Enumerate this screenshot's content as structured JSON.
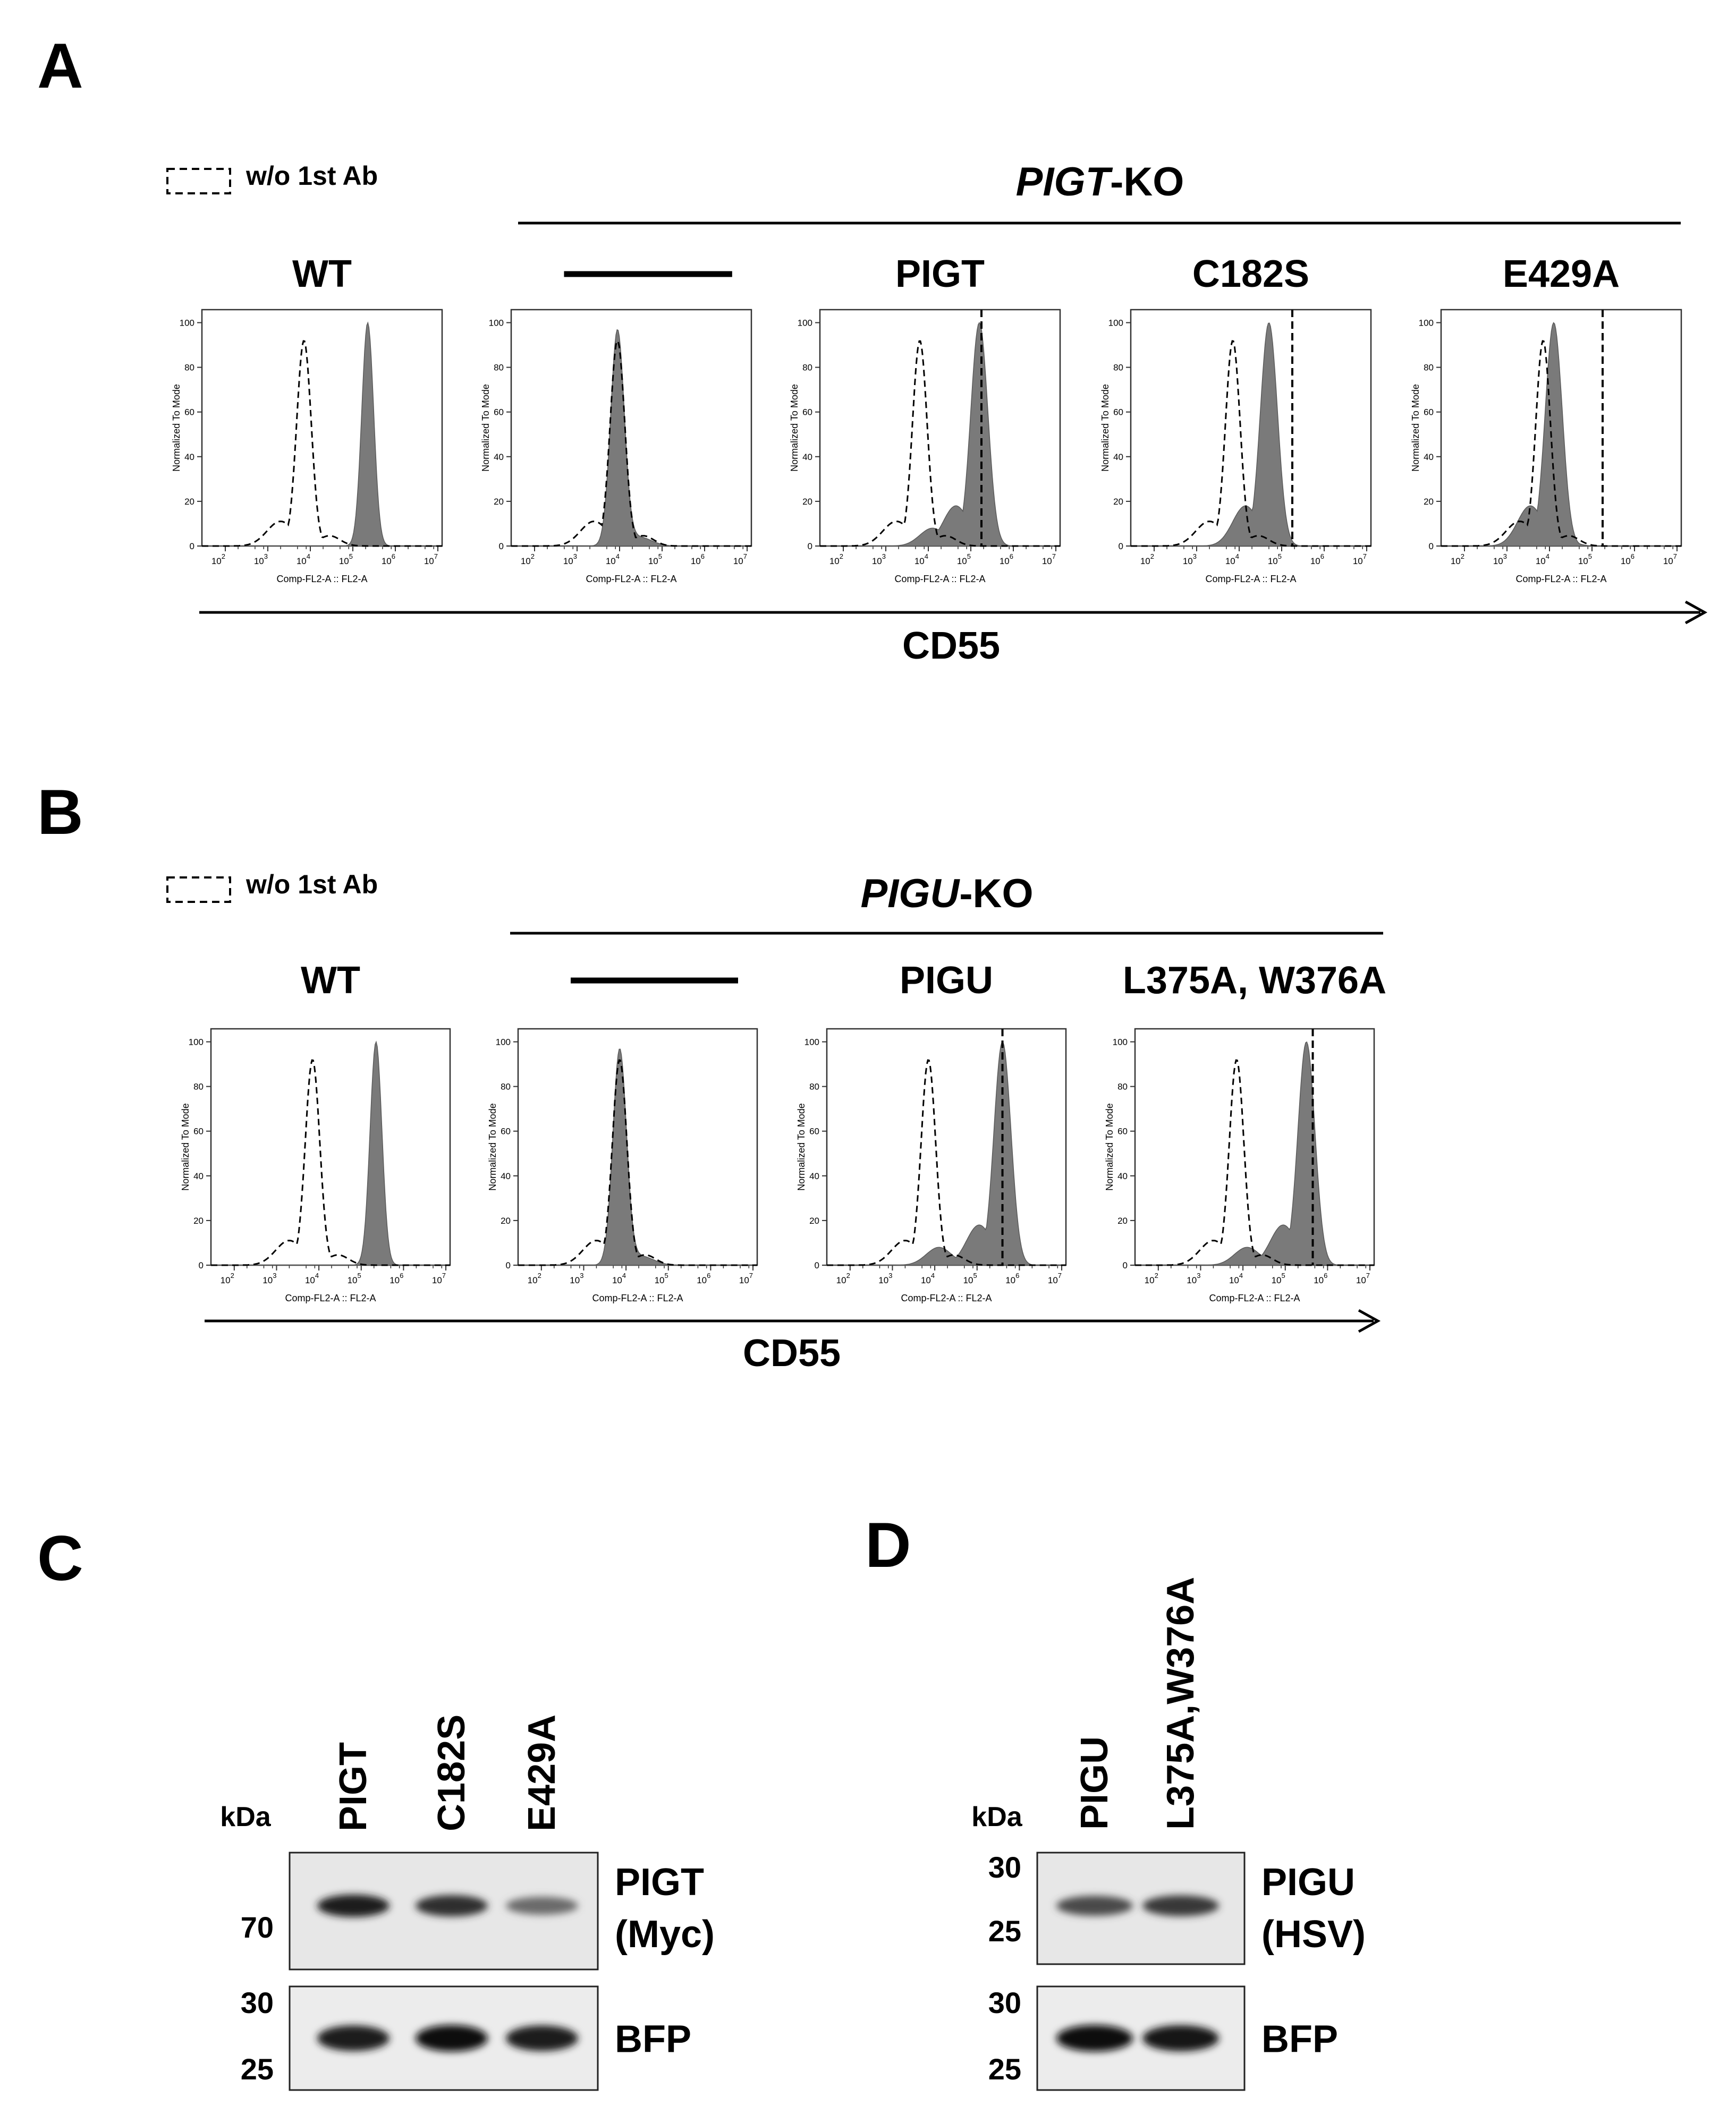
{
  "figure": {
    "panel_labels": {
      "A": "A",
      "B": "B",
      "C": "C",
      "D": "D"
    },
    "legend_label": "w/o 1st Ab",
    "x_axis_label": "CD55",
    "ylabel_small": "Normalized To Mode",
    "xlabel_small": "Comp-FL2-A :: FL2-A",
    "y_ticks": [
      "0",
      "20",
      "40",
      "60",
      "80",
      "100"
    ],
    "x_tick_base": "10",
    "x_tick_exponents": [
      "2",
      "3",
      "4",
      "5",
      "6",
      "7"
    ]
  },
  "panel_a": {
    "group_title_italic": "PIGT",
    "group_title_suffix": "-KO",
    "plots": [
      {
        "title": "WT",
        "dashed_peak_log": 3.85,
        "filled_peak_log": 5.35,
        "marker_log": null
      },
      {
        "title": "",
        "dashed_peak_log": 3.95,
        "filled_peak_log": 3.95,
        "marker_log": null
      },
      {
        "title": "PIGT",
        "dashed_peak_log": 3.8,
        "filled_peak_log": 5.2,
        "marker_log": 5.25
      },
      {
        "title": "C182S",
        "dashed_peak_log": 3.85,
        "filled_peak_log": 4.7,
        "marker_log": 5.25
      },
      {
        "title": "E429A",
        "dashed_peak_log": 3.85,
        "filled_peak_log": 4.1,
        "marker_log": 5.25
      }
    ]
  },
  "panel_b": {
    "group_title_italic": "PIGU",
    "group_title_suffix": "-KO",
    "plots": [
      {
        "title": "WT",
        "dashed_peak_log": 3.85,
        "filled_peak_log": 5.35,
        "marker_log": null
      },
      {
        "title": "",
        "dashed_peak_log": 3.85,
        "filled_peak_log": 3.85,
        "marker_log": null
      },
      {
        "title": "PIGU",
        "dashed_peak_log": 3.85,
        "filled_peak_log": 5.6,
        "marker_log": 5.6
      },
      {
        "title": "L375A, W376A",
        "dashed_peak_log": 3.85,
        "filled_peak_log": 5.5,
        "marker_log": 5.65
      }
    ]
  },
  "panel_c": {
    "unit": "kDa",
    "lanes": [
      "PIGT",
      "C182S",
      "E429A"
    ],
    "top_markers": [
      "70"
    ],
    "top_label_1": "PIGT",
    "top_label_2": "(Myc)",
    "bottom_markers": [
      "30",
      "25"
    ],
    "bottom_label": "BFP",
    "top_band_intensity": [
      1.0,
      0.9,
      0.55
    ],
    "bottom_band_intensity": [
      0.9,
      1.0,
      0.9
    ]
  },
  "panel_d": {
    "unit": "kDa",
    "lanes": [
      "PIGU",
      "L375A,W376A"
    ],
    "top_markers": [
      "30",
      "25"
    ],
    "top_label_1": "PIGU",
    "top_label_2": "(HSV)",
    "bottom_markers": [
      "30",
      "25"
    ],
    "bottom_label": "BFP",
    "top_band_intensity": [
      0.75,
      0.85
    ],
    "bottom_band_intensity": [
      1.0,
      0.95
    ]
  }
}
